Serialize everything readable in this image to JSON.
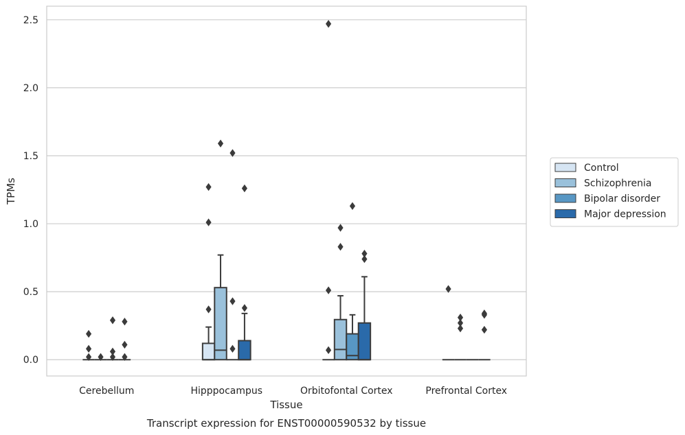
{
  "chart_data": {
    "type": "box",
    "title": "",
    "caption": "Transcript expression for ENST00000590532 by tissue",
    "xlabel": "Tissue",
    "ylabel": "TPMs",
    "ylim": [
      -0.12,
      2.6
    ],
    "yticks": [
      0.0,
      0.5,
      1.0,
      1.5,
      2.0,
      2.5
    ],
    "ytick_labels": [
      "0.0",
      "0.5",
      "1.0",
      "1.5",
      "2.0",
      "2.5"
    ],
    "grid": "horizontal",
    "legend_position": "right",
    "categories": [
      "Cerebellum",
      "Hipppocampus",
      "Orbitofontal Cortex",
      "Prefrontal Cortex"
    ],
    "series": [
      {
        "name": "Control",
        "color": "#d6e5f3",
        "boxes": [
          {
            "q1": 0,
            "median": 0,
            "q3": 0,
            "whisker_low": 0,
            "whisker_high": 0,
            "outliers": [
              0.19,
              0.08,
              0.02
            ]
          },
          {
            "q1": 0,
            "median": 0,
            "q3": 0.12,
            "whisker_low": 0,
            "whisker_high": 0.24,
            "outliers": [
              1.27,
              1.01,
              0.37
            ]
          },
          {
            "q1": 0,
            "median": 0,
            "q3": 0,
            "whisker_low": 0,
            "whisker_high": 0,
            "outliers": [
              2.47,
              0.51,
              0.07
            ]
          },
          {
            "q1": 0,
            "median": 0,
            "q3": 0,
            "whisker_low": 0,
            "whisker_high": 0,
            "outliers": [
              0.52
            ]
          }
        ]
      },
      {
        "name": "Schizophrenia",
        "color": "#9ac1db",
        "boxes": [
          {
            "q1": 0,
            "median": 0,
            "q3": 0,
            "whisker_low": 0,
            "whisker_high": 0,
            "outliers": [
              0.02
            ]
          },
          {
            "q1": 0,
            "median": 0.07,
            "q3": 0.53,
            "whisker_low": 0,
            "whisker_high": 0.77,
            "outliers": [
              1.59
            ]
          },
          {
            "q1": 0,
            "median": 0.075,
            "q3": 0.295,
            "whisker_low": 0,
            "whisker_high": 0.47,
            "outliers": [
              0.97,
              0.83
            ]
          },
          {
            "q1": 0,
            "median": 0,
            "q3": 0,
            "whisker_low": 0,
            "whisker_high": 0,
            "outliers": [
              0.31,
              0.27,
              0.23
            ]
          }
        ]
      },
      {
        "name": "Bipolar disorder",
        "color": "#5897c4",
        "boxes": [
          {
            "q1": 0,
            "median": 0,
            "q3": 0,
            "whisker_low": 0,
            "whisker_high": 0,
            "outliers": [
              0.29,
              0.06,
              0.02
            ]
          },
          {
            "q1": 0,
            "median": 0,
            "q3": 0,
            "whisker_low": 0,
            "whisker_high": 0,
            "outliers": [
              1.52,
              0.43,
              0.08
            ]
          },
          {
            "q1": 0,
            "median": 0.03,
            "q3": 0.19,
            "whisker_low": 0,
            "whisker_high": 0.33,
            "outliers": [
              1.13
            ]
          },
          {
            "q1": 0,
            "median": 0,
            "q3": 0,
            "whisker_low": 0,
            "whisker_high": 0,
            "outliers": []
          }
        ]
      },
      {
        "name": "Major depression",
        "color": "#2a6aaa",
        "boxes": [
          {
            "q1": 0,
            "median": 0,
            "q3": 0,
            "whisker_low": 0,
            "whisker_high": 0,
            "outliers": [
              0.28,
              0.11,
              0.02
            ]
          },
          {
            "q1": 0,
            "median": 0,
            "q3": 0.14,
            "whisker_low": 0,
            "whisker_high": 0.34,
            "outliers": [
              1.26,
              0.38
            ]
          },
          {
            "q1": 0,
            "median": 0,
            "q3": 0.27,
            "whisker_low": 0,
            "whisker_high": 0.61,
            "outliers": [
              0.78,
              0.74
            ]
          },
          {
            "q1": 0,
            "median": 0,
            "q3": 0,
            "whisker_low": 0,
            "whisker_high": 0,
            "outliers": [
              0.34,
              0.33,
              0.22
            ]
          }
        ]
      }
    ]
  }
}
